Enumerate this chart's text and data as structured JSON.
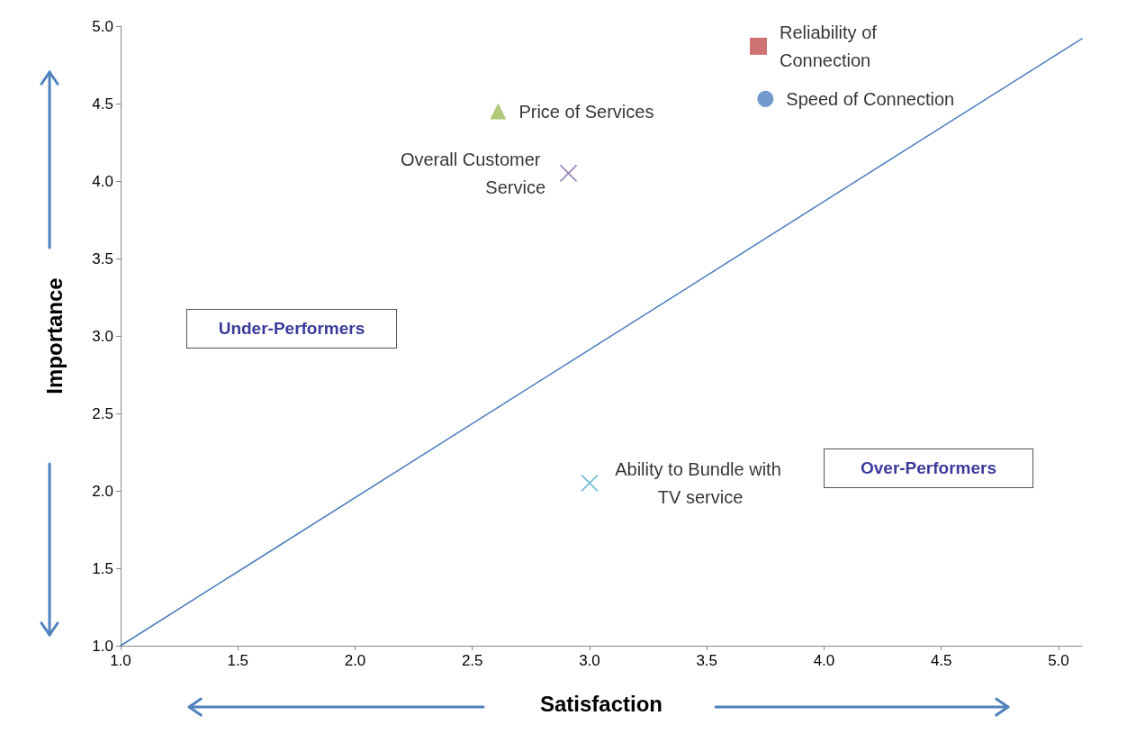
{
  "chart_data": {
    "type": "scatter",
    "xlabel": "Satisfaction",
    "ylabel": "Importance",
    "xlim": [
      1.0,
      5.1
    ],
    "xticks": [
      {
        "value": 1,
        "label": "1.0"
      },
      {
        "value": 1.5,
        "label": "1.5"
      },
      {
        "value": 2,
        "label": "2.0"
      },
      {
        "value": 2.5,
        "label": "2.5"
      },
      {
        "value": 3,
        "label": "3.0"
      },
      {
        "value": 3.5,
        "label": "3.5"
      },
      {
        "value": 4,
        "label": "4.0"
      },
      {
        "value": 4.5,
        "label": "4.5"
      },
      {
        "value": 5,
        "label": "5.0"
      }
    ],
    "ylim": [
      1.0,
      5.0
    ],
    "yticks": [
      {
        "value": 1,
        "label": "1.0"
      },
      {
        "value": 1.5,
        "label": "1.5"
      },
      {
        "value": 2,
        "label": "2.0"
      },
      {
        "value": 2.5,
        "label": "2.5"
      },
      {
        "value": 3,
        "label": "3.0"
      },
      {
        "value": 3.5,
        "label": "3.5"
      },
      {
        "value": 4,
        "label": "4.0"
      },
      {
        "value": 4.5,
        "label": "4.5"
      },
      {
        "value": 5,
        "label": "5.0"
      }
    ],
    "grid": false,
    "legend": false,
    "series": [
      {
        "name": "Reliability of Connection",
        "color": "#c0504d",
        "marker": "square",
        "x": [
          3.72
        ],
        "values": [
          4.87
        ]
      },
      {
        "name": "Speed of Connection",
        "color": "#4f81bd",
        "marker": "circle",
        "x": [
          3.75
        ],
        "values": [
          4.53
        ]
      },
      {
        "name": "Price of Services",
        "color": "#9bbb59",
        "marker": "triangle",
        "x": [
          2.61
        ],
        "values": [
          4.45
        ]
      },
      {
        "name": "Overall Customer Service",
        "color": "#8064a2",
        "marker": "cross",
        "x": [
          2.91
        ],
        "values": [
          4.05
        ]
      },
      {
        "name": "Ability to Bundle with TV service",
        "color": "#4bacc6",
        "marker": "cross",
        "x": [
          3.0
        ],
        "values": [
          2.05
        ]
      },
      {
        "type": "line",
        "color": "#4a7ebb",
        "marker": "none",
        "line_style": "solid",
        "x": [
          1.0,
          5.1
        ],
        "values": [
          1.0,
          4.92
        ]
      }
    ],
    "annotations": [
      "Under-Performers",
      "Over-Performers"
    ]
  }
}
